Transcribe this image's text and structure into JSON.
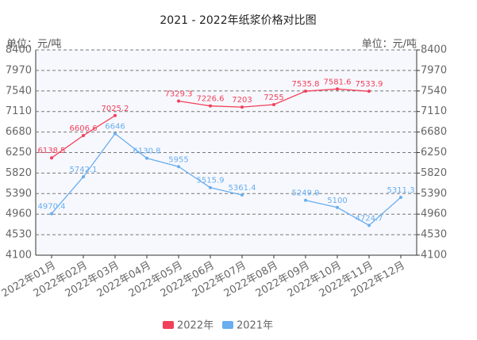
{
  "chart_data": {
    "type": "line",
    "title": "2021 - 2022年纸浆价格对比图",
    "ylabel": "单位：元/吨",
    "y2label": "单位：元/吨",
    "categories": [
      "2022年01月",
      "2022年02月",
      "2022年03月",
      "2022年04月",
      "2022年05月",
      "2022年06月",
      "2022年07月",
      "2022年08月",
      "2022年09月",
      "2022年10月",
      "2022年11月",
      "2022年12月"
    ],
    "series": [
      {
        "name": "2022年",
        "color": "#f2405a",
        "values": [
          6138.5,
          6606.6,
          7025.2,
          null,
          7329.3,
          7226.6,
          7203,
          7255,
          7535.8,
          7581.6,
          7533.9,
          null
        ]
      },
      {
        "name": "2021年",
        "color": "#68aef0",
        "values": [
          4970.4,
          5742.1,
          6646,
          6130.8,
          5955,
          5515.9,
          5361.4,
          null,
          5249.9,
          5100,
          4724.7,
          5311.3
        ]
      }
    ],
    "ylim": [
      4100,
      8400
    ],
    "yticks": [
      4100,
      4530,
      4960,
      5390,
      5820,
      6250,
      6680,
      7110,
      7540,
      7970,
      8400
    ],
    "y2lim": [
      4100,
      8400
    ],
    "y2ticks": [
      4100,
      4530,
      4960,
      5390,
      5820,
      6250,
      6680,
      7110,
      7540,
      7970,
      8400
    ],
    "grid": true,
    "legend": "bottom"
  }
}
